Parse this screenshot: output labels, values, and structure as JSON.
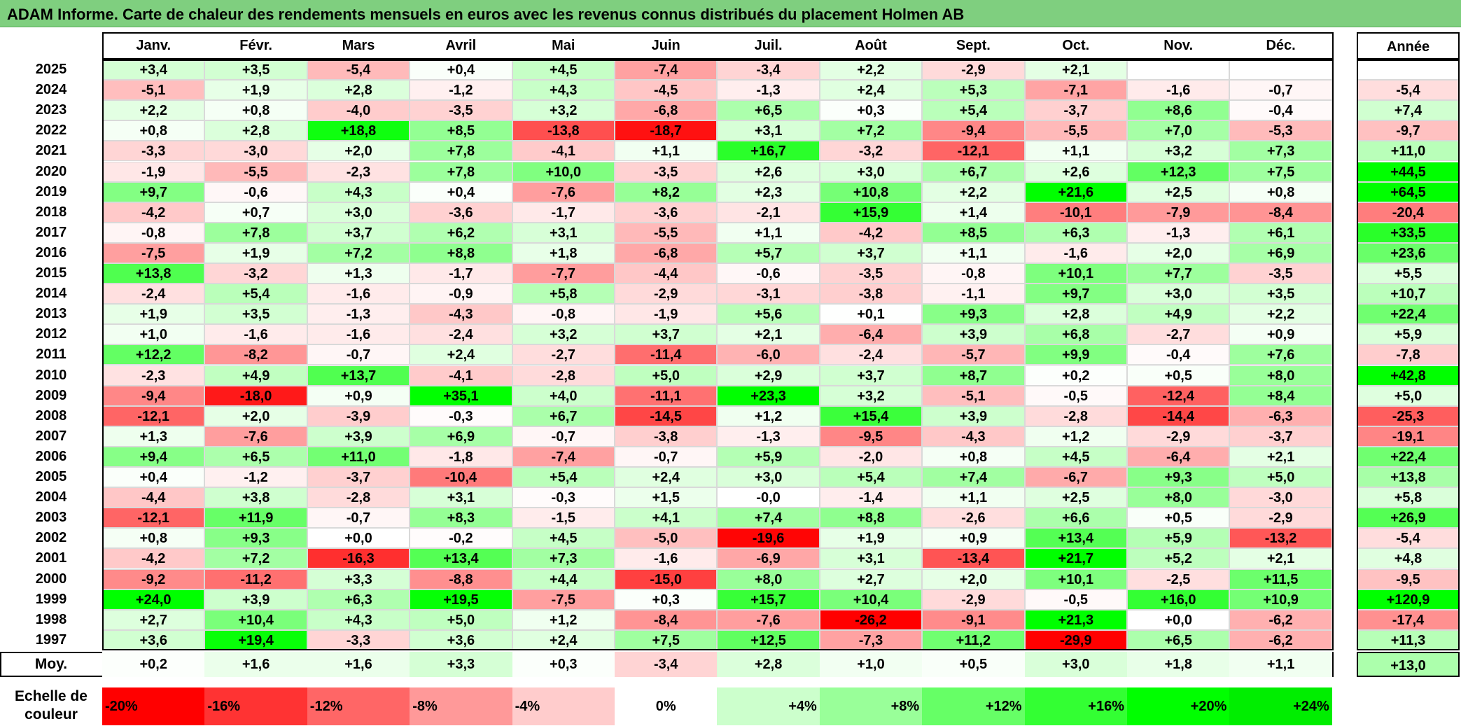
{
  "title": "ADAM Informe. Carte de chaleur des rendements mensuels en euros avec les revenus connus distribués du placement Holmen AB",
  "chart_data": {
    "type": "heatmap",
    "months": [
      "Janv.",
      "Févr.",
      "Mars",
      "Avril",
      "Mai",
      "Juin",
      "Juil.",
      "Août",
      "Sept.",
      "Oct.",
      "Nov.",
      "Déc."
    ],
    "year_header": "Année",
    "rows": [
      {
        "year": "2025",
        "values": [
          "+3,4",
          "+3,5",
          "-5,4",
          "+0,4",
          "+4,5",
          "-7,4",
          "-3,4",
          "+2,2",
          "-2,9",
          "+2,1",
          "",
          ""
        ],
        "annual": ""
      },
      {
        "year": "2024",
        "values": [
          "-5,1",
          "+1,9",
          "+2,8",
          "-1,2",
          "+4,3",
          "-4,5",
          "-1,3",
          "+2,4",
          "+5,3",
          "-7,1",
          "-1,6",
          "-0,7"
        ],
        "annual": "-5,4"
      },
      {
        "year": "2023",
        "values": [
          "+2,2",
          "+0,8",
          "-4,0",
          "-3,5",
          "+3,2",
          "-6,8",
          "+6,5",
          "+0,3",
          "+5,4",
          "-3,7",
          "+8,6",
          "-0,4"
        ],
        "annual": "+7,4"
      },
      {
        "year": "2022",
        "values": [
          "+0,8",
          "+2,8",
          "+18,8",
          "+8,5",
          "-13,8",
          "-18,7",
          "+3,1",
          "+7,2",
          "-9,4",
          "-5,5",
          "+7,0",
          "-5,3"
        ],
        "annual": "-9,7"
      },
      {
        "year": "2021",
        "values": [
          "-3,3",
          "-3,0",
          "+2,0",
          "+7,8",
          "-4,1",
          "+1,1",
          "+16,7",
          "-3,2",
          "-12,1",
          "+1,1",
          "+3,2",
          "+7,3"
        ],
        "annual": "+11,0"
      },
      {
        "year": "2020",
        "values": [
          "-1,9",
          "-5,5",
          "-2,3",
          "+7,8",
          "+10,0",
          "-3,5",
          "+2,6",
          "+3,0",
          "+6,7",
          "+2,6",
          "+12,3",
          "+7,5"
        ],
        "annual": "+44,5"
      },
      {
        "year": "2019",
        "values": [
          "+9,7",
          "-0,6",
          "+4,3",
          "+0,4",
          "-7,6",
          "+8,2",
          "+2,3",
          "+10,8",
          "+2,2",
          "+21,6",
          "+2,5",
          "+0,8"
        ],
        "annual": "+64,5"
      },
      {
        "year": "2018",
        "values": [
          "-4,2",
          "+0,7",
          "+3,0",
          "-3,6",
          "-1,7",
          "-3,6",
          "-2,1",
          "+15,9",
          "+1,4",
          "-10,1",
          "-7,9",
          "-8,4"
        ],
        "annual": "-20,4"
      },
      {
        "year": "2017",
        "values": [
          "-0,8",
          "+7,8",
          "+3,7",
          "+6,2",
          "+3,1",
          "-5,5",
          "+1,1",
          "-4,2",
          "+8,5",
          "+6,3",
          "-1,3",
          "+6,1"
        ],
        "annual": "+33,5"
      },
      {
        "year": "2016",
        "values": [
          "-7,5",
          "+1,9",
          "+7,2",
          "+8,8",
          "+1,8",
          "-6,8",
          "+5,7",
          "+3,7",
          "+1,1",
          "-1,6",
          "+2,0",
          "+6,9"
        ],
        "annual": "+23,6"
      },
      {
        "year": "2015",
        "values": [
          "+13,8",
          "-3,2",
          "+1,3",
          "-1,7",
          "-7,7",
          "-4,4",
          "-0,6",
          "-3,5",
          "-0,8",
          "+10,1",
          "+7,7",
          "-3,5"
        ],
        "annual": "+5,5"
      },
      {
        "year": "2014",
        "values": [
          "-2,4",
          "+5,4",
          "-1,6",
          "-0,9",
          "+5,8",
          "-2,9",
          "-3,1",
          "-3,8",
          "-1,1",
          "+9,7",
          "+3,0",
          "+3,5"
        ],
        "annual": "+10,7"
      },
      {
        "year": "2013",
        "values": [
          "+1,9",
          "+3,5",
          "-1,3",
          "-4,3",
          "-0,8",
          "-1,9",
          "+5,6",
          "+0,1",
          "+9,3",
          "+2,8",
          "+4,9",
          "+2,2"
        ],
        "annual": "+22,4"
      },
      {
        "year": "2012",
        "values": [
          "+1,0",
          "-1,6",
          "-1,6",
          "-2,4",
          "+3,2",
          "+3,7",
          "+2,1",
          "-6,4",
          "+3,9",
          "+6,8",
          "-2,7",
          "+0,9"
        ],
        "annual": "+5,9"
      },
      {
        "year": "2011",
        "values": [
          "+12,2",
          "-8,2",
          "-0,7",
          "+2,4",
          "-2,7",
          "-11,4",
          "-6,0",
          "-2,4",
          "-5,7",
          "+9,9",
          "-0,4",
          "+7,6"
        ],
        "annual": "-7,8"
      },
      {
        "year": "2010",
        "values": [
          "-2,3",
          "+4,9",
          "+13,7",
          "-4,1",
          "-2,8",
          "+5,0",
          "+2,9",
          "+3,7",
          "+8,7",
          "+0,2",
          "+0,5",
          "+8,0"
        ],
        "annual": "+42,8"
      },
      {
        "year": "2009",
        "values": [
          "-9,4",
          "-18,0",
          "+0,9",
          "+35,1",
          "+4,0",
          "-11,1",
          "+23,3",
          "+3,2",
          "-5,1",
          "-0,5",
          "-12,4",
          "+8,4"
        ],
        "annual": "+5,0"
      },
      {
        "year": "2008",
        "values": [
          "-12,1",
          "+2,0",
          "-3,9",
          "-0,3",
          "+6,7",
          "-14,5",
          "+1,2",
          "+15,4",
          "+3,9",
          "-2,8",
          "-14,4",
          "-6,3"
        ],
        "annual": "-25,3"
      },
      {
        "year": "2007",
        "values": [
          "+1,3",
          "-7,6",
          "+3,9",
          "+6,9",
          "-0,7",
          "-3,8",
          "-1,3",
          "-9,5",
          "-4,3",
          "+1,2",
          "-2,9",
          "-3,7"
        ],
        "annual": "-19,1"
      },
      {
        "year": "2006",
        "values": [
          "+9,4",
          "+6,5",
          "+11,0",
          "-1,8",
          "-7,4",
          "-0,7",
          "+5,9",
          "-2,0",
          "+0,8",
          "+4,5",
          "-6,4",
          "+2,1"
        ],
        "annual": "+22,4"
      },
      {
        "year": "2005",
        "values": [
          "+0,4",
          "-1,2",
          "-3,7",
          "-10,4",
          "+5,4",
          "+2,4",
          "+3,0",
          "+5,4",
          "+7,4",
          "-6,7",
          "+9,3",
          "+5,0"
        ],
        "annual": "+13,8"
      },
      {
        "year": "2004",
        "values": [
          "-4,4",
          "+3,8",
          "-2,8",
          "+3,1",
          "-0,3",
          "+1,5",
          "-0,0",
          "-1,4",
          "+1,1",
          "+2,5",
          "+8,0",
          "-3,0"
        ],
        "annual": "+5,8"
      },
      {
        "year": "2003",
        "values": [
          "-12,1",
          "+11,9",
          "-0,7",
          "+8,3",
          "-1,5",
          "+4,1",
          "+7,4",
          "+8,8",
          "-2,6",
          "+6,6",
          "+0,5",
          "-2,9"
        ],
        "annual": "+26,9"
      },
      {
        "year": "2002",
        "values": [
          "+0,8",
          "+9,3",
          "+0,0",
          "-0,2",
          "+4,5",
          "-5,0",
          "-19,6",
          "+1,9",
          "+0,9",
          "+13,4",
          "+5,9",
          "-13,2"
        ],
        "annual": "-5,4"
      },
      {
        "year": "2001",
        "values": [
          "-4,2",
          "+7,2",
          "-16,3",
          "+13,4",
          "+7,3",
          "-1,6",
          "-6,9",
          "+3,1",
          "-13,4",
          "+21,7",
          "+5,2",
          "+2,1"
        ],
        "annual": "+4,8"
      },
      {
        "year": "2000",
        "values": [
          "-9,2",
          "-11,2",
          "+3,3",
          "-8,8",
          "+4,4",
          "-15,0",
          "+8,0",
          "+2,7",
          "+2,0",
          "+10,1",
          "-2,5",
          "+11,5"
        ],
        "annual": "-9,5"
      },
      {
        "year": "1999",
        "values": [
          "+24,0",
          "+3,9",
          "+6,3",
          "+19,5",
          "-7,5",
          "+0,3",
          "+15,7",
          "+10,4",
          "-2,9",
          "-0,5",
          "+16,0",
          "+10,9"
        ],
        "annual": "+120,9"
      },
      {
        "year": "1998",
        "values": [
          "+2,7",
          "+10,4",
          "+4,3",
          "+5,0",
          "+1,2",
          "-8,4",
          "-7,6",
          "-26,2",
          "-9,1",
          "+21,3",
          "+0,0",
          "-6,2"
        ],
        "annual": "-17,4"
      },
      {
        "year": "1997",
        "values": [
          "+3,6",
          "+19,4",
          "-3,3",
          "+3,6",
          "+2,4",
          "+7,5",
          "+12,5",
          "-7,3",
          "+11,2",
          "-29,9",
          "+6,5",
          "-6,2"
        ],
        "annual": "+11,3"
      }
    ],
    "average": {
      "label": "Moy.",
      "values": [
        "+0,2",
        "+1,6",
        "+1,6",
        "+3,3",
        "+0,3",
        "-3,4",
        "+2,8",
        "+1,0",
        "+0,5",
        "+3,0",
        "+1,8",
        "+1,1"
      ],
      "annual": "+13,0"
    },
    "scale": {
      "label_line1": "Echelle de",
      "label_line2": "couleur",
      "steps": [
        {
          "label": "-20%",
          "value": -20,
          "color": "#ff0000"
        },
        {
          "label": "-16%",
          "value": -16,
          "color": "#ff3333"
        },
        {
          "label": "-12%",
          "value": -12,
          "color": "#ff6666"
        },
        {
          "label": "-8%",
          "value": -8,
          "color": "#ff9999"
        },
        {
          "label": "-4%",
          "value": -4,
          "color": "#ffcccc"
        },
        {
          "label": "0%",
          "value": 0,
          "color": "#ffffff"
        },
        {
          "label": "+4%",
          "value": 4,
          "color": "#ccffcc"
        },
        {
          "label": "+8%",
          "value": 8,
          "color": "#99ff99"
        },
        {
          "label": "+12%",
          "value": 12,
          "color": "#66ff66"
        },
        {
          "label": "+16%",
          "value": 16,
          "color": "#33ff33"
        },
        {
          "label": "+20%",
          "value": 20,
          "color": "#00ff00"
        },
        {
          "label": "+24%",
          "value": 24,
          "color": "#00ee00"
        }
      ]
    }
  }
}
